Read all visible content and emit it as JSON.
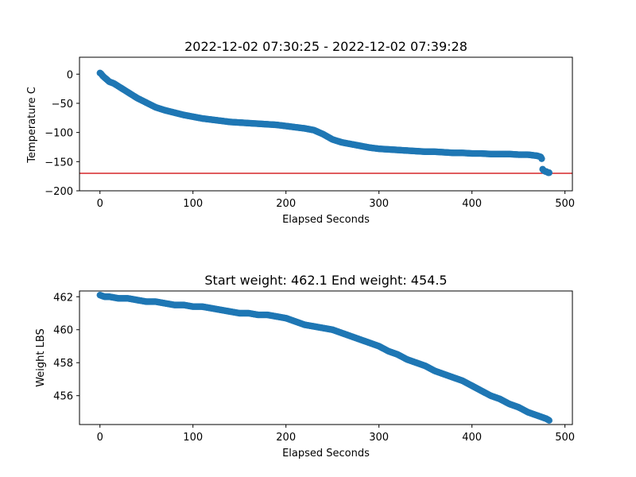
{
  "chart_data": [
    {
      "type": "scatter",
      "title": "2022-12-02 07:30:25 - 2022-12-02 07:39:28",
      "xlabel": "Elapsed Seconds",
      "ylabel": "Temperature C",
      "xlim": [
        -22,
        508
      ],
      "ylim": [
        -200,
        29
      ],
      "xticks": [
        0,
        100,
        200,
        300,
        400,
        500
      ],
      "yticks": [
        0,
        -50,
        -100,
        -150,
        -200
      ],
      "marker_color": "#1f77b4",
      "hline": {
        "y": -170,
        "color": "#d62728"
      },
      "series": [
        {
          "x": [
            0,
            1,
            2,
            3,
            5,
            8,
            10,
            15,
            20,
            25,
            30,
            35,
            40,
            45,
            50,
            55,
            60,
            70,
            80,
            90,
            100,
            110,
            120,
            130,
            140,
            150,
            160,
            170,
            180,
            190,
            200,
            210,
            220,
            230,
            240,
            250,
            260,
            270,
            280,
            290,
            300,
            310,
            320,
            330,
            340,
            350,
            360,
            370,
            380,
            390,
            400,
            410,
            420,
            430,
            440,
            450,
            460,
            465,
            470,
            474,
            475,
            476,
            477,
            478,
            479,
            480,
            481,
            482,
            483
          ],
          "y": [
            2,
            1,
            -1,
            -3,
            -6,
            -10,
            -13,
            -16,
            -21,
            -26,
            -31,
            -36,
            -41,
            -45,
            -49,
            -53,
            -57,
            -62,
            -66,
            -70,
            -73,
            -76,
            -78,
            -80,
            -82,
            -83,
            -84,
            -85,
            -86,
            -87,
            -89,
            -91,
            -93,
            -96,
            -103,
            -112,
            -117,
            -120,
            -123,
            -126,
            -128,
            -129,
            -130,
            -131,
            -132,
            -133,
            -133,
            -134,
            -135,
            -135,
            -136,
            -136,
            -137,
            -137,
            -137,
            -138,
            -138,
            -139,
            -140,
            -142,
            -145,
            -163,
            -165,
            -166,
            -167,
            -167,
            -168,
            -169,
            -169
          ]
        }
      ]
    },
    {
      "type": "scatter",
      "title": "Start weight: 462.1 End weight: 454.5",
      "xlabel": "Elapsed Seconds",
      "ylabel": "Weight LBS",
      "xlim": [
        -22,
        508
      ],
      "ylim": [
        454.25,
        462.35
      ],
      "xticks": [
        0,
        100,
        200,
        300,
        400,
        500
      ],
      "yticks": [
        456,
        458,
        460,
        462
      ],
      "marker_color": "#1f77b4",
      "series": [
        {
          "x": [
            0,
            5,
            10,
            20,
            30,
            40,
            50,
            60,
            70,
            80,
            90,
            100,
            110,
            120,
            130,
            140,
            150,
            160,
            170,
            180,
            190,
            200,
            210,
            220,
            230,
            240,
            250,
            260,
            270,
            280,
            290,
            300,
            310,
            320,
            330,
            340,
            350,
            360,
            370,
            380,
            390,
            400,
            410,
            420,
            430,
            440,
            450,
            460,
            470,
            475,
            480,
            483
          ],
          "y": [
            462.1,
            462.0,
            462.0,
            461.9,
            461.9,
            461.8,
            461.7,
            461.7,
            461.6,
            461.5,
            461.5,
            461.4,
            461.4,
            461.3,
            461.2,
            461.1,
            461.0,
            461.0,
            460.9,
            460.9,
            460.8,
            460.7,
            460.5,
            460.3,
            460.2,
            460.1,
            460.0,
            459.8,
            459.6,
            459.4,
            459.2,
            459.0,
            458.7,
            458.5,
            458.2,
            458.0,
            457.8,
            457.5,
            457.3,
            457.1,
            456.9,
            456.6,
            456.3,
            456.0,
            455.8,
            455.5,
            455.3,
            455.0,
            454.8,
            454.7,
            454.6,
            454.5
          ]
        }
      ]
    }
  ]
}
